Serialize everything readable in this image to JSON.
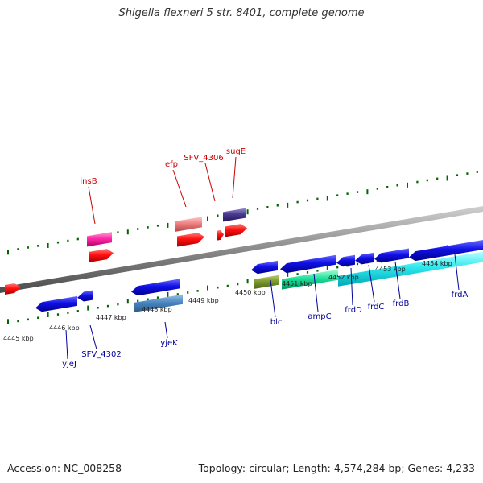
{
  "title": "Shigella flexneri 5 str. 8401, complete genome",
  "footer": {
    "accession": "Accession: NC_008258",
    "summary": "Topology: circular; Length: 4,574,284 bp; Genes: 4,233"
  },
  "colors": {
    "forward_label": "#cc0000",
    "reverse_label": "#000099",
    "tick": "#006600",
    "axis": "#8a8a8a"
  },
  "scale_labels": [
    "4445 kbp",
    "4446 kbp",
    "4447 kbp",
    "4448 kbp",
    "4449 kbp",
    "4450 kbp",
    "4451 kbp",
    "4452 kbp",
    "4453 kbp",
    "4454 kbp"
  ],
  "forward_gene_labels": [
    "insB",
    "efp",
    "SFV_4306",
    "sugE"
  ],
  "reverse_gene_labels": [
    "yjeJ",
    "SFV_4302",
    "yjeK",
    "blc",
    "ampC",
    "frdD",
    "frdC",
    "frdB",
    "frdA"
  ]
}
